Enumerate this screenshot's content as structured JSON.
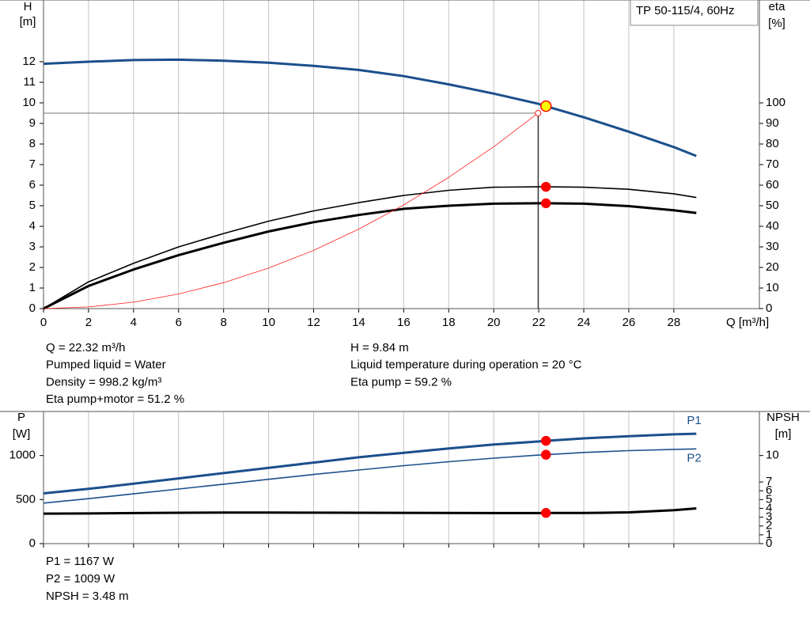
{
  "chart_data": [
    {
      "type": "line",
      "title": "TP 50-115/4, 60Hz",
      "y_label": "H",
      "y_unit": "[m]",
      "y2_label": "eta",
      "y2_unit": "[%]",
      "x_label": "Q [m³/h]",
      "xlim": [
        0,
        31.8
      ],
      "xticks": [
        0,
        2,
        4,
        6,
        8,
        10,
        12,
        14,
        16,
        18,
        20,
        22,
        24,
        26,
        28
      ],
      "ylim": [
        0,
        15
      ],
      "yticks": [
        0,
        1,
        2,
        3,
        4,
        5,
        6,
        7,
        8,
        9,
        10,
        11,
        12
      ],
      "y2lim": [
        0,
        150
      ],
      "y2ticks": [
        0,
        10,
        20,
        30,
        40,
        50,
        60,
        70,
        80,
        90,
        100
      ],
      "grid": true,
      "x": [
        0,
        2,
        4,
        6,
        8,
        10,
        12,
        14,
        16,
        18,
        20,
        22,
        22.32,
        24,
        26,
        28,
        29
      ],
      "series": [
        {
          "color": "#1b4f8c",
          "line_width": 3,
          "values": [
            11.9,
            12.0,
            12.08,
            12.1,
            12.05,
            11.95,
            11.8,
            11.6,
            11.3,
            10.9,
            10.45,
            9.95,
            9.84,
            9.3,
            8.6,
            7.85,
            7.42
          ]
        },
        {
          "color": "#000000",
          "line_width": 1.6,
          "axis": "y2",
          "values": [
            0,
            13,
            22,
            30,
            36.5,
            42.5,
            47.5,
            51.5,
            55,
            57.5,
            59,
            59.2,
            59.2,
            59,
            58,
            55.8,
            54
          ]
        },
        {
          "color": "#000000",
          "line_width": 3,
          "axis": "y2",
          "values": [
            0,
            11,
            19,
            26,
            32,
            37.5,
            42,
            45.5,
            48.5,
            50,
            51,
            51.2,
            51.2,
            51,
            49.8,
            47.8,
            46.5
          ]
        },
        {
          "color": "#ff2020",
          "line_width": 0.8,
          "values": [
            0,
            0.08,
            0.31,
            0.71,
            1.26,
            1.97,
            2.83,
            3.86,
            5.04,
            6.38,
            7.87,
            9.53,
            null,
            null,
            null,
            null,
            null
          ]
        }
      ],
      "guide": {
        "x": 21.97,
        "y": 9.5
      },
      "markers": [
        {
          "x": 22.32,
          "y": 9.84,
          "color": "#ffff00"
        },
        {
          "x": 22.32,
          "y": 59.2,
          "axis": "y2",
          "color": "#ff0000"
        },
        {
          "x": 22.32,
          "y": 51.2,
          "axis": "y2",
          "color": "#ff0000"
        }
      ],
      "notes": [
        "Q = 22.32 m³/h",
        "Pumped liquid = Water",
        "Density = 998.2 kg/m³",
        "Eta pump+motor = 51.2 %",
        "H = 9.84 m",
        "Liquid temperature during operation = 20 °C",
        "Eta pump = 59.2 %"
      ]
    },
    {
      "type": "line",
      "y_label": "P",
      "y_unit": "[W]",
      "y2_label": "NPSH",
      "y2_unit": "[m]",
      "xlim": [
        0,
        31.8
      ],
      "xticks": [
        0,
        2,
        4,
        6,
        8,
        10,
        12,
        14,
        16,
        18,
        20,
        22,
        24,
        26,
        28
      ],
      "ylim": [
        0,
        1500
      ],
      "yticks": [
        0,
        500,
        1000
      ],
      "y2lim": [
        0,
        15
      ],
      "y2ticks": [
        0,
        1,
        2,
        3,
        4,
        5,
        6,
        7,
        10
      ],
      "grid": true,
      "x": [
        0,
        2,
        4,
        6,
        8,
        10,
        12,
        14,
        16,
        18,
        20,
        22,
        22.32,
        24,
        26,
        28,
        29
      ],
      "series": [
        {
          "name": "P1",
          "color": "#1b4f8c",
          "line_width": 3,
          "values": [
            570,
            622,
            680,
            740,
            800,
            860,
            920,
            980,
            1030,
            1080,
            1125,
            1160,
            1167,
            1195,
            1220,
            1240,
            1248
          ]
        },
        {
          "name": "P2",
          "color": "#1b4f8c",
          "line_width": 1.6,
          "values": [
            460,
            510,
            565,
            620,
            675,
            730,
            785,
            835,
            885,
            930,
            970,
            1005,
            1009,
            1035,
            1055,
            1070,
            1075
          ]
        },
        {
          "color": "#000000",
          "line_width": 3,
          "axis": "y2",
          "values": [
            3.4,
            3.42,
            3.47,
            3.5,
            3.52,
            3.52,
            3.51,
            3.5,
            3.49,
            3.48,
            3.47,
            3.47,
            3.48,
            3.48,
            3.55,
            3.8,
            4.0
          ]
        }
      ],
      "markers": [
        {
          "x": 22.32,
          "y": 1167,
          "color": "#ff0000"
        },
        {
          "x": 22.32,
          "y": 1009,
          "color": "#ff0000"
        },
        {
          "x": 22.32,
          "y": 3.48,
          "axis": "y2",
          "color": "#ff0000"
        }
      ],
      "notes": [
        "P1 = 1167 W",
        "P2 = 1009 W",
        "NPSH = 3.48 m"
      ]
    }
  ]
}
